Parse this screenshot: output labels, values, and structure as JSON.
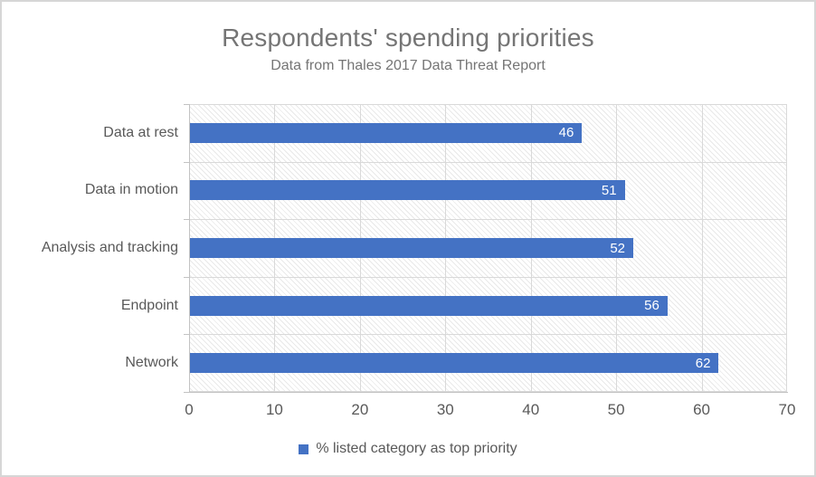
{
  "chart_data": {
    "type": "bar",
    "orientation": "horizontal",
    "title": "Respondents' spending priorities",
    "subtitle": "Data from Thales 2017 Data Threat Report",
    "categories": [
      "Data at rest",
      "Data in motion",
      "Analysis and tracking",
      "Endpoint",
      "Network"
    ],
    "values": [
      46,
      51,
      52,
      56,
      62
    ],
    "data_labels": [
      "46",
      "51",
      "52",
      "56",
      "62"
    ],
    "xlabel": "",
    "ylabel": "",
    "xlim": [
      0,
      70
    ],
    "xticks": [
      0,
      10,
      20,
      30,
      40,
      50,
      60,
      70
    ],
    "grid": true,
    "legend": [
      "% listed category as top priority"
    ],
    "legend_position": "bottom",
    "colors": {
      "bar": "#4472C4",
      "data_label": "#FFFFFF",
      "gridline": "#D9D9D9",
      "axis_text": "#595959",
      "title_text": "#757575",
      "plot_hatch": "#E9E9E9"
    }
  }
}
